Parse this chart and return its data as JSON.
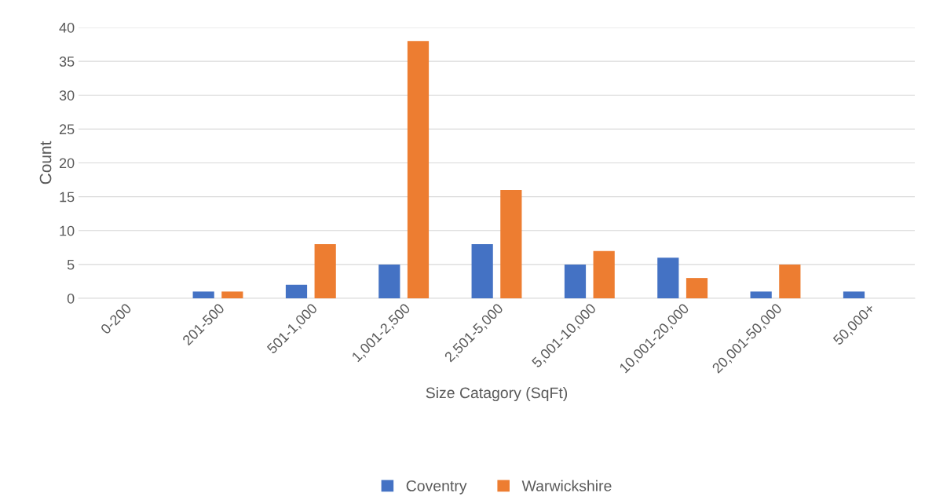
{
  "chart_data": {
    "type": "bar",
    "xlabel": "Size Catagory (SqFt)",
    "ylabel": "Count",
    "categories": [
      "0-200",
      "201-500",
      "501-1,000",
      "1,001-2,500",
      "2,501-5,000",
      "5,001-10,000",
      "10,001-20,000",
      "20,001-50,000",
      "50,000+"
    ],
    "series": [
      {
        "name": "Coventry",
        "color": "#4472c4",
        "values": [
          0,
          1,
          2,
          5,
          8,
          5,
          6,
          1,
          1
        ]
      },
      {
        "name": "Warwickshire",
        "color": "#ed7d31",
        "values": [
          0,
          1,
          8,
          38,
          16,
          7,
          3,
          5,
          0
        ]
      }
    ],
    "ylim": [
      0,
      40
    ],
    "yticks": [
      0,
      5,
      10,
      15,
      20,
      25,
      30,
      35,
      40
    ],
    "grid": "y",
    "legend": "bottom"
  }
}
